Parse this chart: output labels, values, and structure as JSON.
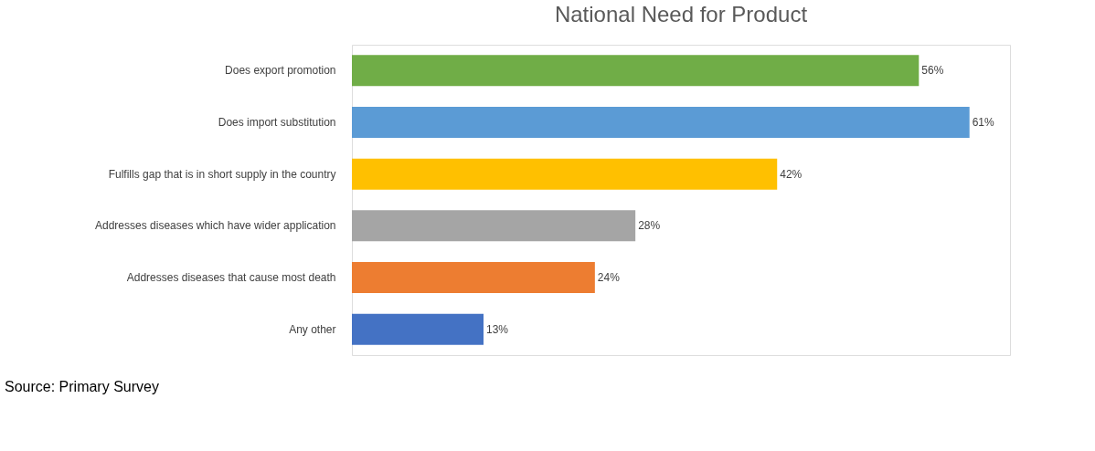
{
  "chart_data": {
    "type": "bar",
    "orientation": "horizontal",
    "title": "National Need for Product",
    "categories": [
      "Does export promotion",
      "Does import substitution",
      "Fulfills gap that is in short supply in the country",
      "Addresses diseases which have wider application",
      "Addresses diseases that cause most death",
      "Any other"
    ],
    "values": [
      56,
      61,
      42,
      28,
      24,
      13
    ],
    "colors": [
      "#70ad47",
      "#5b9bd5",
      "#ffc000",
      "#a5a5a5",
      "#ed7d31",
      "#4472c4"
    ],
    "value_labels": [
      "56%",
      "61%",
      "42%",
      "28%",
      "24%",
      "13%"
    ],
    "annotations": [
      "Source: Primary Survey"
    ]
  }
}
